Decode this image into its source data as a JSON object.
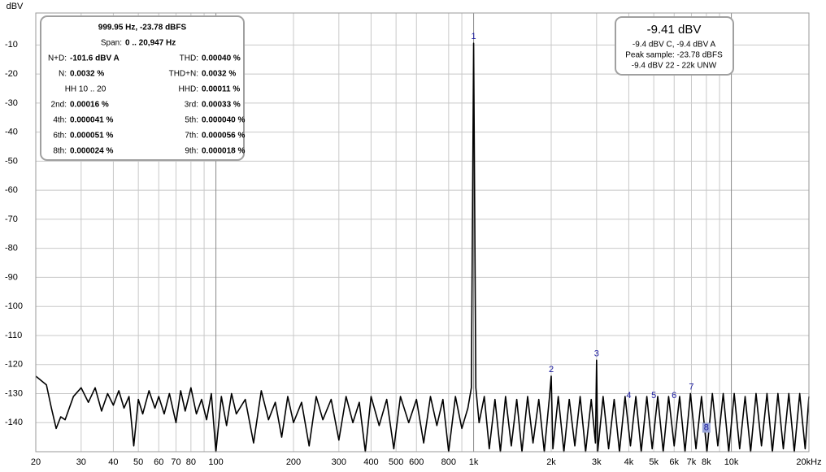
{
  "chart_data": {
    "type": "line",
    "y_label": "dBV",
    "log_x": true,
    "color": "#000000",
    "xlim": [
      20,
      20000
    ],
    "ylim": [
      -150,
      1
    ],
    "xticks": [
      20,
      30,
      40,
      50,
      60,
      70,
      80,
      100,
      200,
      300,
      400,
      500,
      600,
      800,
      {
        "value": 1000,
        "label": "1k"
      },
      {
        "value": 2000,
        "label": "2k"
      },
      {
        "value": 3000,
        "label": "3k"
      },
      {
        "value": 4000,
        "label": "4k"
      },
      {
        "value": 5000,
        "label": "5k"
      },
      {
        "value": 6000,
        "label": "6k"
      },
      {
        "value": 7000,
        "label": "7k"
      },
      {
        "value": 8000,
        "label": "8k"
      },
      {
        "value": 10000,
        "label": "10k"
      },
      {
        "value": 20000,
        "label": "20kHz"
      }
    ],
    "xgrid_minor": [
      90,
      900,
      9000
    ],
    "yticks": [
      -10,
      -20,
      -30,
      -40,
      -50,
      -60,
      -70,
      -80,
      -90,
      -100,
      -110,
      -120,
      -130,
      -140
    ],
    "grid": true,
    "x": [
      20,
      22,
      23,
      24,
      25,
      26,
      28,
      30,
      32,
      34,
      36,
      38,
      40,
      42,
      44,
      46,
      48,
      50,
      52,
      55,
      58,
      60,
      63,
      66,
      70,
      73,
      76,
      80,
      84,
      88,
      92,
      96,
      100,
      105,
      110,
      115,
      120,
      130,
      140,
      150,
      160,
      170,
      180,
      190,
      200,
      215,
      230,
      245,
      260,
      280,
      300,
      320,
      340,
      360,
      380,
      400,
      430,
      460,
      490,
      520,
      560,
      600,
      640,
      680,
      720,
      760,
      800,
      850,
      900,
      950,
      980,
      1000,
      1020,
      1050,
      1100,
      1150,
      1210,
      1270,
      1330,
      1400,
      1470,
      1540,
      1620,
      1700,
      1790,
      1880,
      1970,
      2000,
      2030,
      2130,
      2240,
      2350,
      2470,
      2590,
      2720,
      2860,
      2970,
      3000,
      3030,
      3180,
      3340,
      3510,
      3680,
      3870,
      4060,
      4260,
      4470,
      4700,
      4930,
      5180,
      5440,
      5710,
      6000,
      6300,
      6610,
      6940,
      7290,
      7660,
      8040,
      8440,
      8860,
      9300,
      9770,
      10260,
      10770,
      11310,
      11880,
      12470,
      13090,
      13750,
      14430,
      15160,
      15910,
      16710,
      17550,
      18420,
      19340,
      20000
    ],
    "values": [
      -124,
      -127,
      -135,
      -142,
      -138,
      -139,
      -131,
      -128,
      -133,
      -128,
      -136,
      -130,
      -134,
      -129,
      -135,
      -131,
      -148,
      -132,
      -137,
      -129,
      -135,
      -131,
      -137,
      -130,
      -140,
      -129,
      -136,
      -128,
      -137,
      -132,
      -139,
      -130,
      -150,
      -131,
      -141,
      -130,
      -137,
      -132,
      -147,
      -129,
      -139,
      -133,
      -145,
      -131,
      -140,
      -133,
      -148,
      -131,
      -139,
      -132,
      -146,
      -131,
      -140,
      -133,
      -150,
      -131,
      -141,
      -132,
      -149,
      -131,
      -140,
      -132,
      -147,
      -131,
      -141,
      -132,
      -150,
      -131,
      -142,
      -135,
      -128,
      -9.41,
      -128,
      -140,
      -131,
      -149,
      -132,
      -150,
      -131,
      -148,
      -132,
      -150,
      -131,
      -147,
      -132,
      -150,
      -131,
      -124,
      -149,
      -131,
      -150,
      -132,
      -148,
      -131,
      -150,
      -132,
      -147,
      -118.5,
      -150,
      -131,
      -149,
      -132,
      -150,
      -131,
      -148,
      -131,
      -150,
      -131,
      -149,
      -131,
      -150,
      -131,
      -148,
      -131,
      -150,
      -130,
      -149,
      -131,
      -150,
      -130,
      -148,
      -130,
      -150,
      -130,
      -149,
      -131,
      -150,
      -130,
      -148,
      -130,
      -150,
      -130,
      -149,
      -130,
      -150,
      -130,
      -149,
      -131
    ],
    "markers": [
      {
        "label": "1",
        "x": 1000,
        "y": -9.41
      },
      {
        "label": "2",
        "x": 2000,
        "y": -124
      },
      {
        "label": "3",
        "x": 3000,
        "y": -118.5
      },
      {
        "label": "4",
        "x": 4000,
        "y": -133
      },
      {
        "label": "5",
        "x": 5000,
        "y": -133
      },
      {
        "label": "6",
        "x": 6000,
        "y": -133
      },
      {
        "label": "7",
        "x": 7000,
        "y": -130
      },
      {
        "label": "8",
        "x": 8000,
        "y": -144
      }
    ],
    "info_box": {
      "header": "999.95 Hz, -23.78 dBFS",
      "span_label": "Span:",
      "span_value": "0 .. 20,947 Hz",
      "cells": [
        {
          "label": "N+D:",
          "value": "-101.6 dBV A"
        },
        {
          "label": "THD:",
          "value": "0.00040 %"
        },
        {
          "label": "N:",
          "value": "0.0032 %"
        },
        {
          "label": "THD+N:",
          "value": "0.0032 %"
        },
        {
          "label": "HH 10 .. 20"
        },
        {
          "label": "HHD:",
          "value": "0.00011 %"
        },
        {
          "label": "2nd:",
          "value": "0.00016 %"
        },
        {
          "label": "3rd:",
          "value": "0.00033 %"
        },
        {
          "label": "4th:",
          "value": "0.000041 %"
        },
        {
          "label": "5th:",
          "value": "0.000040 %"
        },
        {
          "label": "6th:",
          "value": "0.000051 %"
        },
        {
          "label": "7th:",
          "value": "0.000056 %"
        },
        {
          "label": "8th:",
          "value": "0.000024 %"
        },
        {
          "label": "9th:",
          "value": "0.000018 %"
        }
      ]
    },
    "level_box": {
      "level": "-9.41 dBV",
      "lines": [
        "-9.4 dBV C, -9.4 dBV A",
        "Peak sample: -23.78 dBFS",
        "-9.4 dBV 22 - 22k UNW"
      ]
    }
  }
}
